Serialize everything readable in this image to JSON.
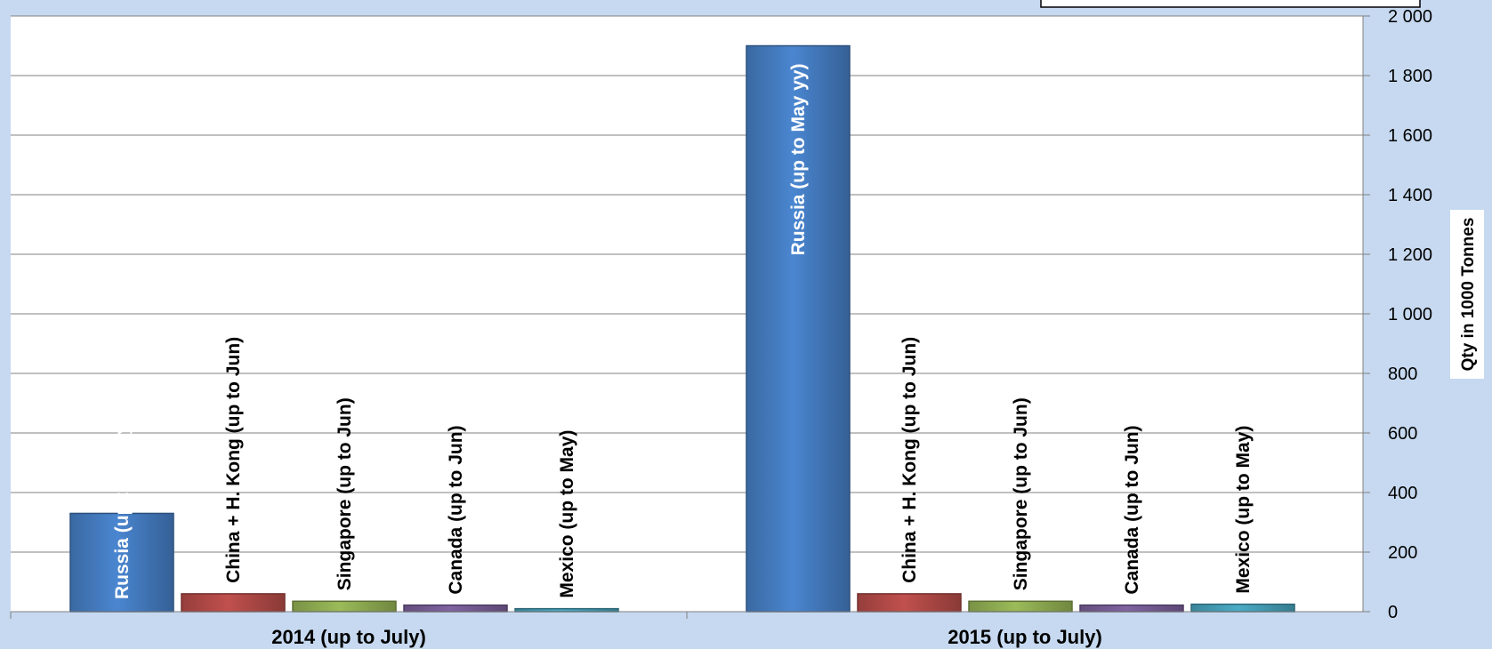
{
  "chart_data": {
    "type": "bar",
    "categories": [
      "2014 (up to July)",
      "2015 (up to July)"
    ],
    "series": [
      {
        "name": "Russia",
        "color": "#4a86d0",
        "labels": [
          "Russia (up to May yy)",
          "Russia (up to May yy)"
        ],
        "values": [
          330,
          1900
        ]
      },
      {
        "name": "China + H. Kong",
        "color": "#c0504d",
        "labels": [
          "China + H. Kong (up to Jun)",
          "China + H. Kong (up to Jun)"
        ],
        "values": [
          60,
          60
        ]
      },
      {
        "name": "Singapore",
        "color": "#9bbb59",
        "labels": [
          "Singapore (up to Jun)",
          "Singapore (up to Jun)"
        ],
        "values": [
          35,
          35
        ]
      },
      {
        "name": "Canada",
        "color": "#8064a2",
        "labels": [
          "Canada (up to Jun)",
          "Canada (up to Jun)"
        ],
        "values": [
          22,
          22
        ]
      },
      {
        "name": "Mexico",
        "color": "#4bacc6",
        "labels": [
          "Mexico (up to May)",
          "Mexico (up to May)"
        ],
        "values": [
          10,
          25
        ]
      }
    ],
    "ylabel": "Qty in 1000 Tonnes",
    "yticks": [
      "0",
      "200",
      "400",
      "600",
      "800",
      "1 000",
      "1 200",
      "1 400",
      "1 600",
      "1 800",
      "2 000"
    ],
    "ylim": [
      0,
      2000
    ],
    "y_axis_side": "right",
    "grid": true,
    "legend": "top-right"
  }
}
